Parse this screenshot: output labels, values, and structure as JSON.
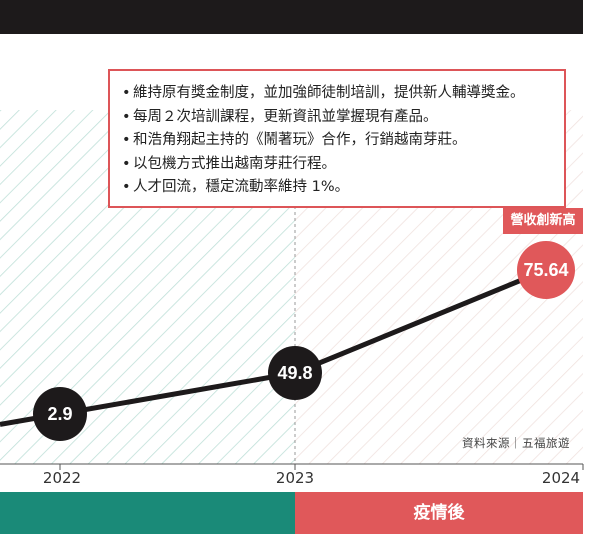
{
  "notes": [
    "維持原有獎金制度，並加強師徒制培訓，提供新人輔導獎金。",
    "每周２次培訓課程，更新資訊並掌握現有產品。",
    "和浩角翔起主持的《鬧著玩》合作，行銷越南芽莊。",
    "以包機方式推出越南芽莊行程。",
    "人才回流，穩定流動率維持 1%。"
  ],
  "bullet": "•",
  "record_badge": "營收創新高",
  "source": "資料來源｜五福旅遊",
  "band_right_label": "疫情後",
  "colors": {
    "accent_red": "#e0585a",
    "teal": "#1a8a78",
    "line_dark": "#1d1a1b",
    "hatch_left": "#bfe0d8",
    "hatch_right": "#f0e2df"
  },
  "chart_data": {
    "type": "line",
    "x": [
      "2022",
      "2023",
      "2024"
    ],
    "values": [
      2.9,
      49.8,
      75.64
    ],
    "value_labels": [
      "2.9",
      "49.8",
      "75.64"
    ],
    "highlight_point": "2024"
  }
}
